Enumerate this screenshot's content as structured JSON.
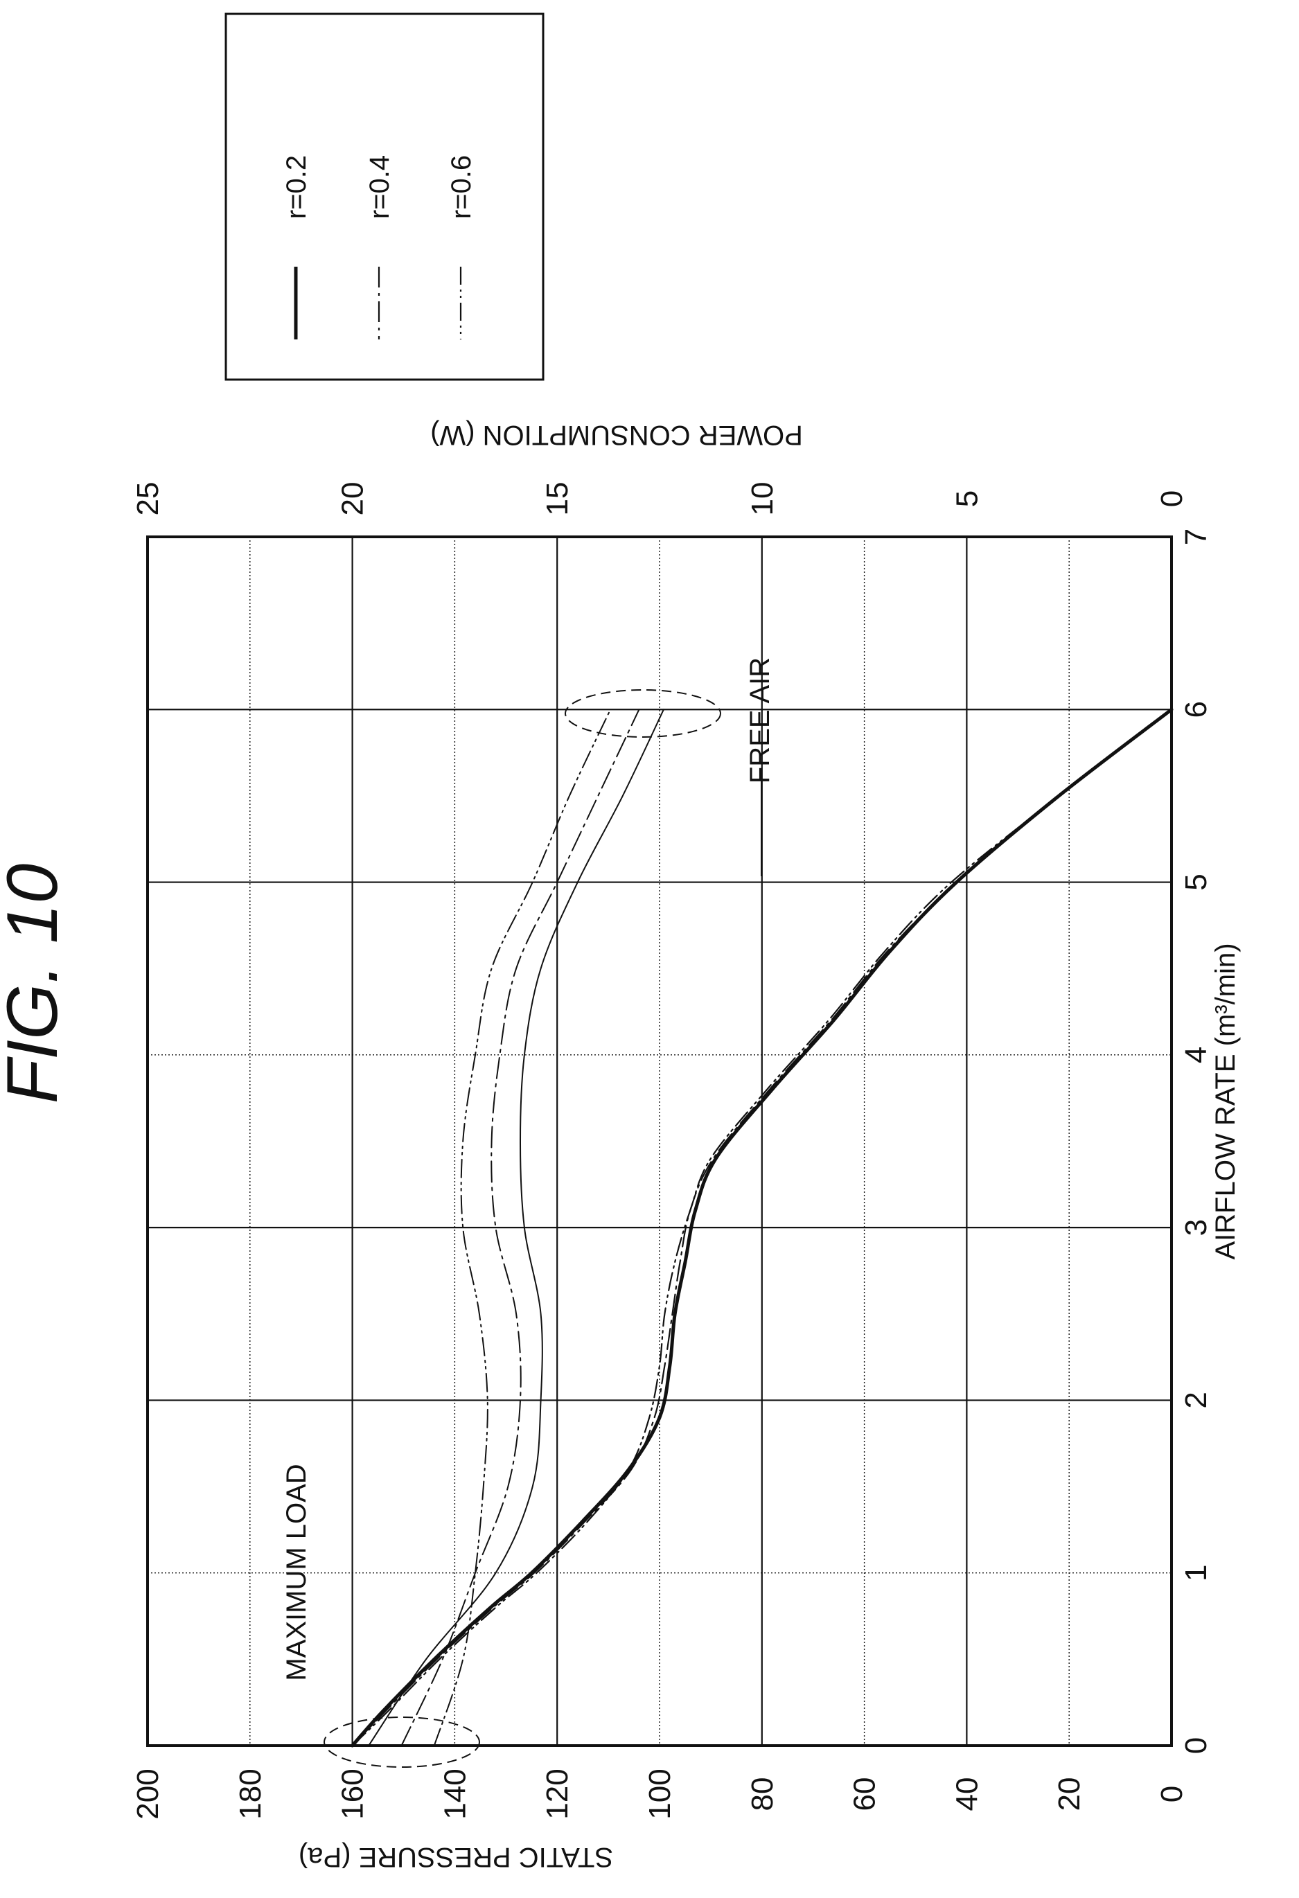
{
  "figure": {
    "title": "FIG. 10"
  },
  "chart_data": {
    "type": "line",
    "title": "FIG. 10",
    "xlabel": "AIRFLOW RATE (m³/min)",
    "ylabel": "STATIC PRESSURE (Pa)",
    "y2label": "POWER CONSUMPTION (W)",
    "xlim": [
      0,
      7
    ],
    "ylim": [
      0,
      200
    ],
    "y2lim": [
      0,
      25
    ],
    "x_ticks": [
      "0",
      "1",
      "2",
      "3",
      "4",
      "5",
      "6",
      "7"
    ],
    "y_ticks": [
      "0",
      "20",
      "40",
      "60",
      "80",
      "100",
      "120",
      "140",
      "160",
      "180",
      "200"
    ],
    "y2_ticks": [
      "0",
      "5",
      "10",
      "15",
      "20",
      "25"
    ],
    "grid": true,
    "legend_position": "top-right",
    "annotations": [
      "MAXIMUM LOAD",
      "FREE AIR"
    ],
    "legend": [
      {
        "label": "r=0.2",
        "dash": "solid",
        "stroke_width": 5
      },
      {
        "label": "r=0.4",
        "dash": "30 8 4 8",
        "stroke_width": 2.2
      },
      {
        "label": "r=0.6",
        "dash": "26 7 3 6 3 7",
        "stroke_width": 2.2
      }
    ],
    "series": [
      {
        "name": "r=0.2",
        "axis": "left",
        "kind": "static_pressure",
        "x": [
          0.0,
          0.2,
          0.5,
          0.8,
          1.0,
          1.3,
          1.6,
          1.9,
          2.2,
          2.5,
          2.8,
          3.1,
          3.4,
          3.8,
          4.2,
          4.6,
          5.0,
          5.5,
          6.0
        ],
        "y": [
          160,
          154,
          144,
          133,
          125,
          115,
          106,
          100,
          98,
          97,
          95,
          93,
          89,
          78,
          66,
          55,
          42,
          22,
          0
        ]
      },
      {
        "name": "r=0.4",
        "axis": "left",
        "kind": "static_pressure",
        "x": [
          0.0,
          0.2,
          0.5,
          0.8,
          1.0,
          1.3,
          1.6,
          1.9,
          2.2,
          2.5,
          2.8,
          3.1,
          3.4,
          3.8,
          4.2,
          4.6,
          5.0,
          5.5,
          6.0
        ],
        "y": [
          160,
          153.5,
          143.5,
          132.5,
          124.5,
          114.5,
          105.5,
          101,
          99,
          97.5,
          96,
          94,
          89.5,
          78.5,
          66.5,
          55.5,
          42,
          22,
          0
        ]
      },
      {
        "name": "r=0.6",
        "axis": "left",
        "kind": "static_pressure",
        "x": [
          0.0,
          0.2,
          0.5,
          0.8,
          1.0,
          1.3,
          1.6,
          1.9,
          2.2,
          2.5,
          2.8,
          3.1,
          3.4,
          3.8,
          4.2,
          4.6,
          5.0,
          5.5,
          6.0
        ],
        "y": [
          160,
          153,
          143,
          132,
          124,
          114,
          106,
          102,
          100,
          99,
          97,
          94,
          90,
          79,
          67,
          56,
          43,
          22,
          0
        ]
      },
      {
        "name": "r=0.2",
        "axis": "right",
        "kind": "power",
        "x": [
          0.0,
          0.5,
          1.0,
          1.5,
          2.0,
          2.5,
          3.0,
          3.5,
          4.0,
          4.5,
          5.0,
          5.5,
          6.0
        ],
        "y": [
          19.6,
          18.2,
          16.5,
          15.6,
          15.4,
          15.4,
          15.8,
          15.9,
          15.8,
          15.4,
          14.5,
          13.4,
          12.4
        ]
      },
      {
        "name": "r=0.4",
        "axis": "right",
        "kind": "power",
        "x": [
          0.0,
          0.5,
          1.0,
          1.5,
          2.0,
          2.5,
          3.0,
          3.5,
          4.0,
          4.5,
          5.0,
          5.5,
          6.0
        ],
        "y": [
          18.8,
          17.8,
          17.0,
          16.2,
          15.9,
          16.0,
          16.5,
          16.6,
          16.4,
          16.0,
          15.0,
          14.0,
          13.0
        ]
      },
      {
        "name": "r=0.6",
        "axis": "right",
        "kind": "power",
        "x": [
          0.0,
          0.5,
          1.0,
          1.5,
          2.0,
          2.5,
          3.0,
          3.5,
          4.0,
          4.5,
          5.0,
          5.5,
          6.0
        ],
        "y": [
          18.0,
          17.3,
          17.0,
          16.8,
          16.7,
          16.9,
          17.3,
          17.3,
          17.0,
          16.6,
          15.6,
          14.7,
          13.7
        ]
      }
    ]
  }
}
